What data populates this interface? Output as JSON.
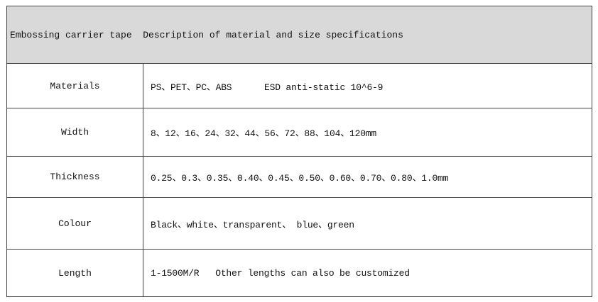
{
  "title": "Embossing carrier tape  Description of material and size specifications",
  "rows": [
    {
      "label": "Materials",
      "value": "PS、PET、PC、ABS      ESD anti-static 10^6-9"
    },
    {
      "label": "Width",
      "value": "8、12、16、24、32、44、56、72、88、104、120mm"
    },
    {
      "label": "Thickness",
      "value": "0.25、0.3、0.35、0.40、0.45、0.50、0.60、0.70、0.80、1.0mm"
    },
    {
      "label": "Colour",
      "value": "Black、white、transparent、 blue、green"
    },
    {
      "label": "Length",
      "value": "1-1500M/R   Other lengths can also be customized"
    }
  ]
}
